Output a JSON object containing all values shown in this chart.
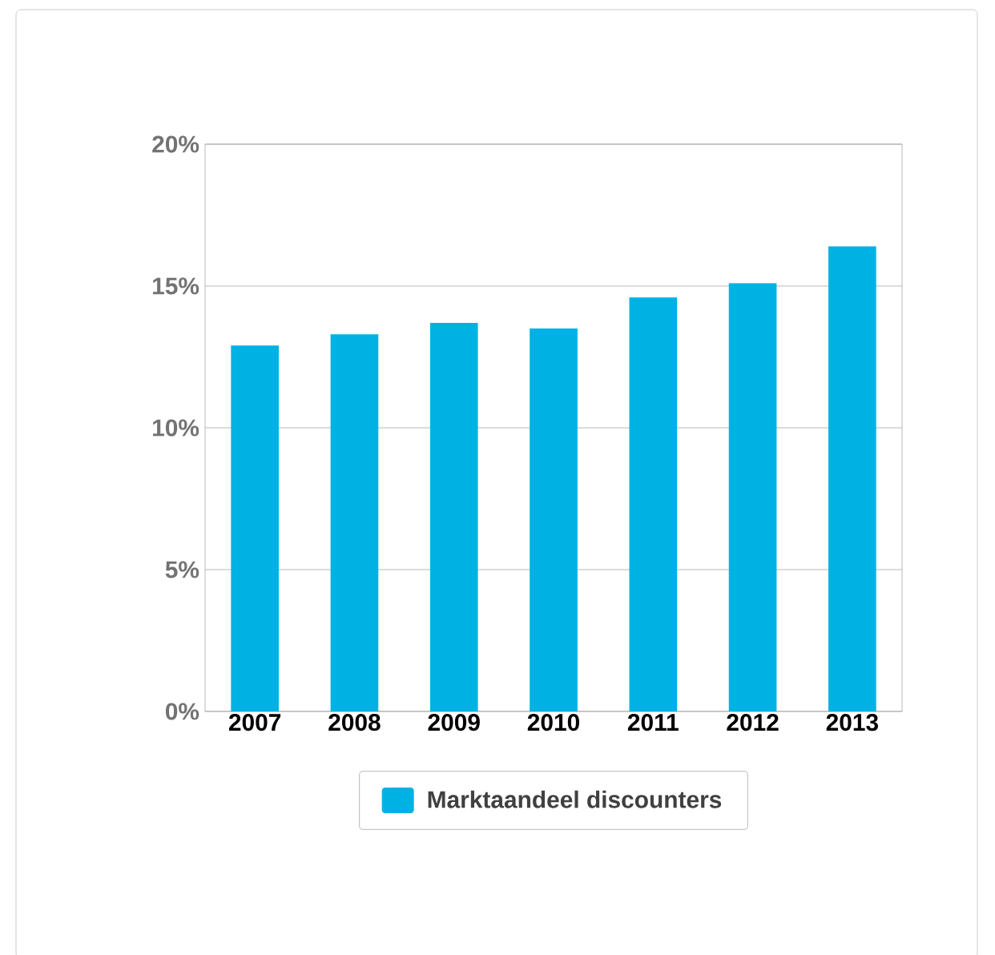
{
  "chart_data": {
    "type": "bar",
    "categories": [
      "2007",
      "2008",
      "2009",
      "2010",
      "2011",
      "2012",
      "2013"
    ],
    "series": [
      {
        "name": "Marktaandeel discounters",
        "color": "#00b2e3",
        "values": [
          12.9,
          13.3,
          13.7,
          13.5,
          14.6,
          15.1,
          16.4
        ]
      }
    ],
    "ylim": [
      0,
      20
    ],
    "yticks": [
      {
        "value": 0,
        "label": "0%"
      },
      {
        "value": 5,
        "label": "5%"
      },
      {
        "value": 10,
        "label": "10%"
      },
      {
        "value": 15,
        "label": "15%"
      },
      {
        "value": 20,
        "label": "20%"
      }
    ],
    "grid": "y",
    "legend": "bottom"
  }
}
